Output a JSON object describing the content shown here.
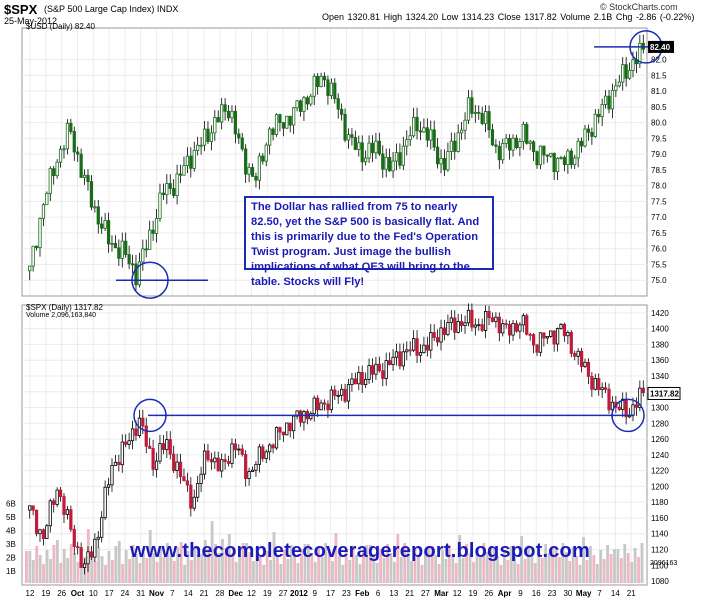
{
  "header": {
    "ticker": "$SPX",
    "name": "(S&P 500 Large Cap Index)",
    "exchange": "INDX",
    "date": "25-May-2012",
    "open": "Open 1320.81",
    "high": "High 1324.20",
    "low": "Low 1314.23",
    "close": "Close 1317.82",
    "volume": "Volume 2.1B",
    "chg": "Chg -2.86 (-0.22%)",
    "copyright": "© StockCharts.com"
  },
  "annotation": "The Dollar has rallied from 75 to nearly 82.50, yet the S&P 500 is basically flat. And this is primarily due to the Fed's Operation Twist program. Just image the bullish implications of what QE3 will bring to the table. Stocks will Fly!",
  "watermark": "www.thecompletecoveragereport.blogspot.com",
  "colors": {
    "up": "#1a6b1a",
    "down": "#c21a3a",
    "line": "#1a2bb5",
    "spx": "#000000",
    "volume_down": "#f2b6c2",
    "volume_up": "#c8c8c8"
  },
  "chart_data": [
    {
      "type": "candlestick",
      "title": "$USD (Daily) 82.40",
      "ylim": [
        74.5,
        83.0
      ],
      "yticks": [
        "75.0",
        "75.5",
        "76.0",
        "76.5",
        "77.0",
        "77.5",
        "78.0",
        "78.5",
        "79.0",
        "79.5",
        "80.0",
        "80.5",
        "81.0",
        "81.5",
        "82.0"
      ],
      "last_value_label": "82.40",
      "series": {
        "name": "$USD",
        "approx_closes": [
          75.3,
          77.4,
          78.8,
          79.8,
          78.3,
          77.1,
          76.2,
          75.9,
          75.2,
          76.4,
          77.8,
          78.1,
          78.9,
          79.4,
          80.1,
          80.5,
          78.8,
          78.2,
          79.8,
          80.0,
          80.4,
          80.9,
          81.5,
          80.6,
          79.4,
          79.0,
          79.2,
          78.5,
          79.2,
          80.0,
          79.5,
          78.6,
          79.5,
          80.5,
          80.2,
          79.1,
          79.3,
          79.6,
          79.0,
          78.9,
          78.7,
          79.1,
          79.8,
          80.5,
          81.2,
          81.8,
          82.3
        ]
      },
      "annotations": [
        {
          "type": "horizontal-line",
          "value": 75.0
        },
        {
          "type": "horizontal-line",
          "value": 82.4
        },
        {
          "type": "circle",
          "value": 75.0
        },
        {
          "type": "circle",
          "value": 82.4
        }
      ]
    },
    {
      "type": "candlestick",
      "title": "$SPX (Daily) 1317.82",
      "volume_label": "Volume 2,096,163,840",
      "ylim": [
        1075,
        1430
      ],
      "yticks": [
        "1080",
        "1100",
        "1120",
        "1140",
        "1160",
        "1180",
        "1200",
        "1220",
        "1240",
        "1260",
        "1280",
        "1300",
        "1320",
        "1340",
        "1360",
        "1380",
        "1400",
        "1420"
      ],
      "volume_ticks": [
        "1B",
        "2B",
        "3B",
        "4B",
        "5B",
        "6B"
      ],
      "volume_last": "2096163",
      "last_value_label": "1317.82",
      "x_tick_labels": [
        "12",
        "19",
        "26",
        "Oct",
        "10",
        "17",
        "24",
        "31",
        "Nov",
        "7",
        "14",
        "21",
        "28",
        "Dec",
        "12",
        "19",
        "27",
        "2012",
        "9",
        "17",
        "23",
        "Feb",
        "6",
        "13",
        "21",
        "27",
        "Mar",
        "12",
        "19",
        "26",
        "Apr",
        "9",
        "16",
        "23",
        "30",
        "May",
        "7",
        "14",
        "21"
      ],
      "series": {
        "name": "$SPX",
        "approx_closes": [
          1170,
          1135,
          1200,
          1145,
          1095,
          1140,
          1225,
          1250,
          1285,
          1230,
          1255,
          1215,
          1180,
          1245,
          1220,
          1255,
          1215,
          1240,
          1260,
          1280,
          1290,
          1300,
          1310,
          1320,
          1335,
          1345,
          1350,
          1365,
          1375,
          1375,
          1395,
          1405,
          1410,
          1405,
          1415,
          1395,
          1410,
          1380,
          1390,
          1400,
          1370,
          1340,
          1320,
          1300,
          1295,
          1318
        ]
      },
      "annotations": [
        {
          "type": "horizontal-line",
          "value": 1290
        },
        {
          "type": "circle",
          "value": 1290
        },
        {
          "type": "circle",
          "value": 1290
        }
      ]
    }
  ]
}
